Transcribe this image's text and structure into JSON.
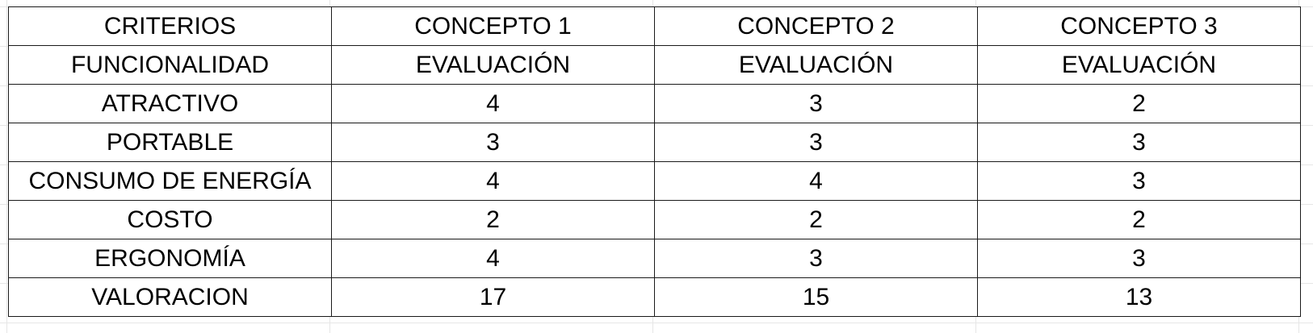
{
  "table": {
    "rows": [
      [
        "CRITERIOS",
        "CONCEPTO 1",
        "CONCEPTO 2",
        "CONCEPTO 3"
      ],
      [
        "FUNCIONALIDAD",
        "EVALUACIÓN",
        "EVALUACIÓN",
        "EVALUACIÓN"
      ],
      [
        "ATRACTIVO",
        "4",
        "3",
        "2"
      ],
      [
        "PORTABLE",
        "3",
        "3",
        "3"
      ],
      [
        "CONSUMO DE ENERGÍA",
        "4",
        "4",
        "3"
      ],
      [
        "COSTO",
        "2",
        "2",
        "2"
      ],
      [
        "ERGONOMÍA",
        "4",
        "3",
        "3"
      ],
      [
        "VALORACION",
        "17",
        "15",
        "13"
      ]
    ]
  }
}
